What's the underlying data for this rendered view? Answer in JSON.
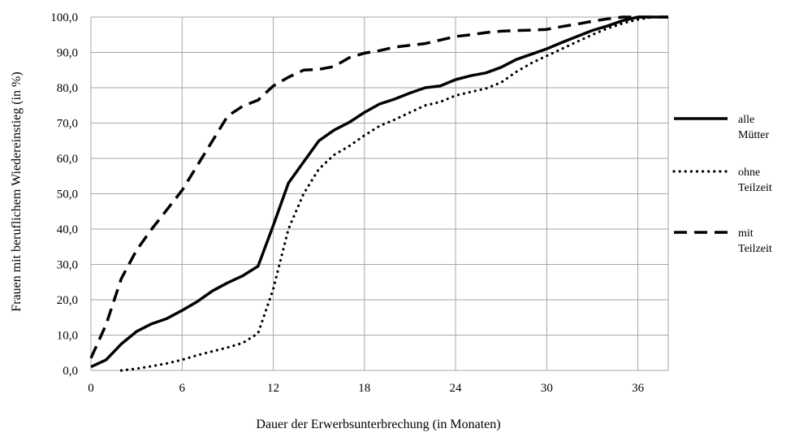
{
  "chart_data": {
    "type": "line",
    "title": "",
    "xlabel": "Dauer der Erwerbsunterbrechung (in Monaten)",
    "ylabel": "Frauen mit beruflichem Wiedereinstieg (in %)",
    "xlim": [
      0,
      38
    ],
    "ylim": [
      0,
      100
    ],
    "x_ticks": [
      0,
      6,
      12,
      18,
      24,
      30,
      36
    ],
    "x_tick_labels": [
      "0",
      "6",
      "12",
      "18",
      "24",
      "30",
      "36"
    ],
    "y_ticks": [
      0,
      10,
      20,
      30,
      40,
      50,
      60,
      70,
      80,
      90,
      100
    ],
    "y_tick_labels": [
      "0,0",
      "10,0",
      "20,0",
      "30,0",
      "40,0",
      "50,0",
      "60,0",
      "70,0",
      "80,0",
      "90,0",
      "100,0"
    ],
    "grid": true,
    "legend_position": "right",
    "series": [
      {
        "name_lines": [
          "alle",
          "Mütter"
        ],
        "style": "solid",
        "color": "#000000",
        "points": [
          [
            0,
            1
          ],
          [
            1,
            3
          ],
          [
            2,
            7.5
          ],
          [
            3,
            11
          ],
          [
            4,
            13.2
          ],
          [
            5,
            14.7
          ],
          [
            6,
            17
          ],
          [
            7,
            19.5
          ],
          [
            8,
            22.5
          ],
          [
            9,
            24.8
          ],
          [
            10,
            26.8
          ],
          [
            11,
            29.5
          ],
          [
            12,
            41
          ],
          [
            13,
            53
          ],
          [
            14,
            59
          ],
          [
            15,
            65
          ],
          [
            16,
            68
          ],
          [
            17,
            70.2
          ],
          [
            18,
            73
          ],
          [
            19,
            75.4
          ],
          [
            20,
            76.8
          ],
          [
            21,
            78.5
          ],
          [
            22,
            80
          ],
          [
            23,
            80.5
          ],
          [
            24,
            82.3
          ],
          [
            25,
            83.4
          ],
          [
            26,
            84.2
          ],
          [
            27,
            85.8
          ],
          [
            28,
            88
          ],
          [
            29,
            89.5
          ],
          [
            30,
            91
          ],
          [
            31,
            92.8
          ],
          [
            32,
            94.5
          ],
          [
            33,
            96.2
          ],
          [
            34,
            97.5
          ],
          [
            35,
            99
          ],
          [
            36,
            100
          ],
          [
            37,
            100
          ],
          [
            38,
            100
          ]
        ]
      },
      {
        "name_lines": [
          "ohne",
          "Teilzeit"
        ],
        "style": "dotted",
        "color": "#000000",
        "points": [
          [
            2,
            0
          ],
          [
            3,
            0.5
          ],
          [
            4,
            1.2
          ],
          [
            5,
            2
          ],
          [
            6,
            3
          ],
          [
            7,
            4.3
          ],
          [
            8,
            5.4
          ],
          [
            9,
            6.5
          ],
          [
            10,
            7.8
          ],
          [
            11,
            10.5
          ],
          [
            12,
            23
          ],
          [
            13,
            40
          ],
          [
            14,
            50
          ],
          [
            15,
            57
          ],
          [
            16,
            61
          ],
          [
            17,
            63.5
          ],
          [
            18,
            66.5
          ],
          [
            19,
            69.2
          ],
          [
            20,
            71
          ],
          [
            21,
            73
          ],
          [
            22,
            75
          ],
          [
            23,
            76
          ],
          [
            24,
            77.8
          ],
          [
            25,
            78.8
          ],
          [
            26,
            79.8
          ],
          [
            27,
            81.5
          ],
          [
            28,
            84.5
          ],
          [
            29,
            87
          ],
          [
            30,
            89
          ],
          [
            31,
            91
          ],
          [
            32,
            93
          ],
          [
            33,
            95
          ],
          [
            34,
            96.8
          ],
          [
            35,
            98.2
          ],
          [
            36,
            99.3
          ],
          [
            37,
            100
          ],
          [
            38,
            100
          ]
        ]
      },
      {
        "name_lines": [
          "mit",
          "Teilzeit"
        ],
        "style": "dashed",
        "color": "#000000",
        "points": [
          [
            0,
            3.5
          ],
          [
            1,
            13
          ],
          [
            2,
            26
          ],
          [
            3,
            34
          ],
          [
            4,
            40
          ],
          [
            5,
            45.5
          ],
          [
            6,
            51
          ],
          [
            7,
            58
          ],
          [
            8,
            65
          ],
          [
            9,
            72
          ],
          [
            10,
            74.8
          ],
          [
            11,
            76.5
          ],
          [
            12,
            80.5
          ],
          [
            13,
            83
          ],
          [
            14,
            85
          ],
          [
            15,
            85.2
          ],
          [
            16,
            86
          ],
          [
            17,
            88.5
          ],
          [
            18,
            89.8
          ],
          [
            19,
            90.5
          ],
          [
            20,
            91.5
          ],
          [
            21,
            92
          ],
          [
            22,
            92.5
          ],
          [
            23,
            93.5
          ],
          [
            24,
            94.5
          ],
          [
            25,
            95
          ],
          [
            26,
            95.6
          ],
          [
            27,
            96
          ],
          [
            28,
            96.2
          ],
          [
            29,
            96.3
          ],
          [
            30,
            96.5
          ],
          [
            31,
            97.3
          ],
          [
            32,
            98
          ],
          [
            33,
            98.8
          ],
          [
            34,
            99.5
          ],
          [
            35,
            100
          ],
          [
            36,
            100
          ],
          [
            37,
            100
          ],
          [
            38,
            100
          ]
        ]
      }
    ]
  }
}
